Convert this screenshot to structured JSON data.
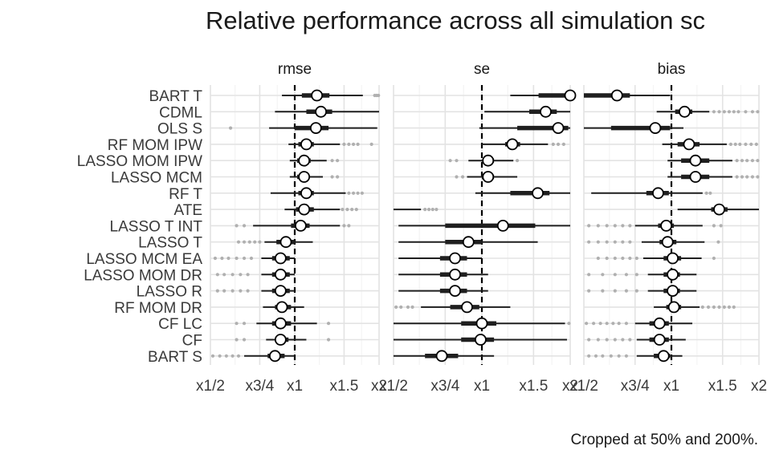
{
  "title": "Relative performance across all simulation sc",
  "caption": "Cropped at 50% and 200%.",
  "chart_data": {
    "type": "interval",
    "x_scale": "log",
    "xlim": [
      0.5,
      2
    ],
    "x_tick_values": [
      0.5,
      0.75,
      1,
      1.5,
      2
    ],
    "x_tick_labels": [
      "x1/2",
      "x3/4",
      "x1",
      "x1.5",
      "x2"
    ],
    "reference_line": 1,
    "methods": [
      "BART T",
      "CDML",
      "OLS S",
      "RF MOM IPW",
      "LASSO MOM IPW",
      "LASSO MCM",
      "RF T",
      "ATE",
      "LASSO T INT",
      "LASSO T",
      "LASSO MCM EA",
      "LASSO MOM DR",
      "LASSO R",
      "RF MOM DR",
      "CF LC",
      "CF",
      "BART S"
    ],
    "panels": [
      {
        "label": "rmse",
        "rows": [
          {
            "point": 1.2,
            "inner": [
              1.06,
              1.33
            ],
            "outer": [
              0.9,
              1.75
            ],
            "outliers": [
              1.93,
              1.96,
              1.99
            ]
          },
          {
            "point": 1.24,
            "inner": [
              1.1,
              1.36
            ],
            "outer": [
              0.85,
              2.0
            ],
            "outliers": []
          },
          {
            "point": 1.19,
            "inner": [
              1.0,
              1.32
            ],
            "outer": [
              0.81,
              1.97
            ],
            "outliers": [
              0.59
            ]
          },
          {
            "point": 1.1,
            "inner": [
              1.03,
              1.17
            ],
            "outer": [
              0.95,
              1.45
            ],
            "outliers": [
              1.5,
              1.56,
              1.62,
              1.68,
              1.88
            ]
          },
          {
            "point": 1.08,
            "inner": [
              1.02,
              1.14
            ],
            "outer": [
              0.96,
              1.3
            ],
            "outliers": [
              1.36,
              1.42
            ]
          },
          {
            "point": 1.08,
            "inner": [
              1.02,
              1.13
            ],
            "outer": [
              0.96,
              1.26
            ],
            "outliers": [
              1.36,
              1.42
            ]
          },
          {
            "point": 1.1,
            "inner": [
              1.03,
              1.17
            ],
            "outer": [
              0.82,
              1.52
            ],
            "outliers": [
              1.56,
              1.62,
              1.68,
              1.74
            ]
          },
          {
            "point": 1.08,
            "inner": [
              1.01,
              1.17
            ],
            "outer": [
              0.92,
              1.45
            ],
            "outliers": [
              1.48,
              1.54,
              1.6,
              1.66
            ]
          },
          {
            "point": 1.05,
            "inner": [
              0.97,
              1.13
            ],
            "outer": [
              0.71,
              1.45
            ],
            "outliers": [
              0.62,
              0.66,
              1.5,
              1.56
            ]
          },
          {
            "point": 0.93,
            "inner": [
              0.86,
              1.0
            ],
            "outer": [
              0.78,
              1.16
            ],
            "outliers": [
              0.63,
              0.66,
              0.69,
              0.72,
              0.75
            ]
          },
          {
            "point": 0.89,
            "inner": [
              0.83,
              0.96
            ],
            "outer": [
              0.76,
              1.0
            ],
            "outliers": [
              0.52,
              0.55,
              0.58,
              0.62,
              0.66,
              0.7
            ]
          },
          {
            "point": 0.89,
            "inner": [
              0.83,
              0.96
            ],
            "outer": [
              0.76,
              1.0
            ],
            "outliers": [
              0.53,
              0.56,
              0.6,
              0.64,
              0.68
            ]
          },
          {
            "point": 0.89,
            "inner": [
              0.83,
              0.96
            ],
            "outer": [
              0.76,
              1.0
            ],
            "outliers": [
              0.53,
              0.56,
              0.6,
              0.64,
              0.68
            ]
          },
          {
            "point": 0.9,
            "inner": [
              0.85,
              0.97
            ],
            "outer": [
              0.77,
              1.08
            ],
            "outliers": []
          },
          {
            "point": 0.89,
            "inner": [
              0.83,
              0.97
            ],
            "outer": [
              0.73,
              1.2
            ],
            "outliers": [
              0.62,
              0.66,
              1.32
            ]
          },
          {
            "point": 0.89,
            "inner": [
              0.85,
              0.95
            ],
            "outer": [
              0.79,
              1.1
            ],
            "outliers": [
              0.62,
              0.66,
              1.32
            ]
          },
          {
            "point": 0.85,
            "inner": [
              0.8,
              0.92
            ],
            "outer": [
              0.66,
              1.0
            ],
            "outliers": [
              0.51,
              0.54,
              0.57,
              0.6,
              0.63
            ]
          }
        ]
      },
      {
        "label": "se",
        "rows": [
          {
            "point": 2.0,
            "inner": [
              1.56,
              2.0
            ],
            "outer": [
              1.25,
              2.0
            ],
            "outliers": []
          },
          {
            "point": 1.65,
            "inner": [
              1.45,
              1.8
            ],
            "outer": [
              1.02,
              2.0
            ],
            "outliers": []
          },
          {
            "point": 1.82,
            "inner": [
              1.32,
              1.97
            ],
            "outer": [
              0.98,
              2.0
            ],
            "outliers": []
          },
          {
            "point": 1.27,
            "inner": [
              1.2,
              1.35
            ],
            "outer": [
              1.0,
              1.68
            ],
            "outliers": [
              1.75,
              1.82,
              1.9
            ]
          },
          {
            "point": 1.05,
            "inner": [
              1.01,
              1.1
            ],
            "outer": [
              0.9,
              1.28
            ],
            "outliers": [
              0.78,
              0.82,
              1.32
            ]
          },
          {
            "point": 1.05,
            "inner": [
              1.0,
              1.1
            ],
            "outer": [
              0.89,
              1.32
            ],
            "outliers": [
              0.82,
              0.86
            ]
          },
          {
            "point": 1.55,
            "inner": [
              1.25,
              1.7
            ],
            "outer": [
              0.95,
              2.0
            ],
            "outliers": []
          },
          {
            "point": null,
            "inner": null,
            "outer": [
              0.5,
              0.62
            ],
            "outliers": [
              0.64,
              0.66,
              0.68,
              0.7
            ]
          },
          {
            "point": 1.18,
            "inner": [
              0.75,
              1.52
            ],
            "outer": [
              0.52,
              2.0
            ],
            "outliers": []
          },
          {
            "point": 0.9,
            "inner": [
              0.75,
              1.0
            ],
            "outer": [
              0.52,
              1.55
            ],
            "outliers": []
          },
          {
            "point": 0.81,
            "inner": [
              0.72,
              0.89
            ],
            "outer": [
              0.52,
              1.0
            ],
            "outliers": []
          },
          {
            "point": 0.81,
            "inner": [
              0.72,
              0.89
            ],
            "outer": [
              0.52,
              1.05
            ],
            "outliers": []
          },
          {
            "point": 0.81,
            "inner": [
              0.72,
              0.89
            ],
            "outer": [
              0.52,
              1.05
            ],
            "outliers": []
          },
          {
            "point": 0.89,
            "inner": [
              0.78,
              0.98
            ],
            "outer": [
              0.62,
              1.25
            ],
            "outliers": [
              0.51,
              0.53,
              0.56,
              0.58
            ]
          },
          {
            "point": 1.0,
            "inner": [
              0.85,
              1.12
            ],
            "outer": [
              0.5,
              1.92
            ],
            "outliers": [
              1.98
            ]
          },
          {
            "point": 0.99,
            "inner": [
              0.85,
              1.1
            ],
            "outer": [
              0.5,
              1.95
            ],
            "outliers": []
          },
          {
            "point": 0.73,
            "inner": [
              0.64,
              0.83
            ],
            "outer": [
              0.5,
              1.1
            ],
            "outliers": []
          }
        ]
      },
      {
        "label": "bias",
        "rows": [
          {
            "point": 0.65,
            "inner": [
              0.5,
              0.72
            ],
            "outer": [
              0.5,
              0.99
            ],
            "outliers": []
          },
          {
            "point": 1.11,
            "inner": [
              1.03,
              1.18
            ],
            "outer": [
              0.89,
              1.35
            ],
            "outliers": [
              1.4,
              1.46,
              1.52,
              1.58,
              1.64,
              1.7,
              1.8,
              1.9,
              1.98
            ]
          },
          {
            "point": 0.88,
            "inner": [
              0.62,
              0.99
            ],
            "outer": [
              0.5,
              1.1
            ],
            "outliers": []
          },
          {
            "point": 1.15,
            "inner": [
              1.05,
              1.25
            ],
            "outer": [
              0.93,
              1.55
            ],
            "outliers": [
              1.6,
              1.66,
              1.72,
              1.8,
              1.88,
              1.96
            ]
          },
          {
            "point": 1.21,
            "inner": [
              1.08,
              1.35
            ],
            "outer": [
              0.97,
              1.62
            ],
            "outliers": [
              1.68,
              1.75,
              1.82,
              1.9,
              1.98
            ]
          },
          {
            "point": 1.21,
            "inner": [
              1.08,
              1.35
            ],
            "outer": [
              0.97,
              1.62
            ],
            "outliers": [
              1.68,
              1.75,
              1.82,
              1.9,
              1.98
            ]
          },
          {
            "point": 0.9,
            "inner": [
              0.82,
              0.98
            ],
            "outer": [
              0.53,
              1.28
            ],
            "outliers": [
              1.32,
              1.36
            ]
          },
          {
            "point": 1.46,
            "inner": [
              1.37,
              1.56
            ],
            "outer": [
              1.05,
              2.0
            ],
            "outliers": []
          },
          {
            "point": 0.96,
            "inner": [
              0.9,
              1.02
            ],
            "outer": [
              0.75,
              1.28
            ],
            "outliers": [
              0.52,
              0.56,
              0.6,
              0.64,
              0.68,
              0.72,
              1.4,
              1.48
            ]
          },
          {
            "point": 0.97,
            "inner": [
              0.91,
              1.04
            ],
            "outer": [
              0.79,
              1.3
            ],
            "outliers": [
              0.52,
              0.56,
              0.6,
              0.64,
              0.68,
              0.72,
              1.45
            ]
          },
          {
            "point": 1.01,
            "inner": [
              0.94,
              1.08
            ],
            "outer": [
              0.8,
              1.27
            ],
            "outliers": [
              0.56,
              0.6,
              0.64,
              0.68,
              0.72,
              0.76,
              1.4
            ]
          },
          {
            "point": 1.01,
            "inner": [
              0.94,
              1.07
            ],
            "outer": [
              0.83,
              1.22
            ],
            "outliers": [
              0.52,
              0.58,
              0.64,
              0.7,
              0.76
            ]
          },
          {
            "point": 1.01,
            "inner": [
              0.94,
              1.07
            ],
            "outer": [
              0.83,
              1.22
            ],
            "outliers": [
              0.52,
              0.58,
              0.64,
              0.7,
              0.76
            ]
          },
          {
            "point": 1.02,
            "inner": [
              0.96,
              1.08
            ],
            "outer": [
              0.87,
              1.25
            ],
            "outliers": [
              1.28,
              1.34,
              1.4,
              1.46,
              1.52,
              1.58,
              1.64
            ]
          },
          {
            "point": 0.91,
            "inner": [
              0.84,
              0.98
            ],
            "outer": [
              0.75,
              1.18
            ],
            "outliers": [
              0.51,
              0.54,
              0.57,
              0.6,
              0.63,
              0.66,
              0.7
            ]
          },
          {
            "point": 0.91,
            "inner": [
              0.84,
              0.98
            ],
            "outer": [
              0.76,
              1.12
            ],
            "outliers": [
              0.52,
              0.56,
              0.6,
              0.64,
              0.68,
              0.72
            ]
          },
          {
            "point": 0.94,
            "inner": [
              0.87,
              0.99
            ],
            "outer": [
              0.76,
              1.09
            ],
            "outliers": [
              0.52,
              0.55,
              0.58,
              0.62,
              0.66,
              0.7
            ]
          }
        ]
      }
    ]
  }
}
